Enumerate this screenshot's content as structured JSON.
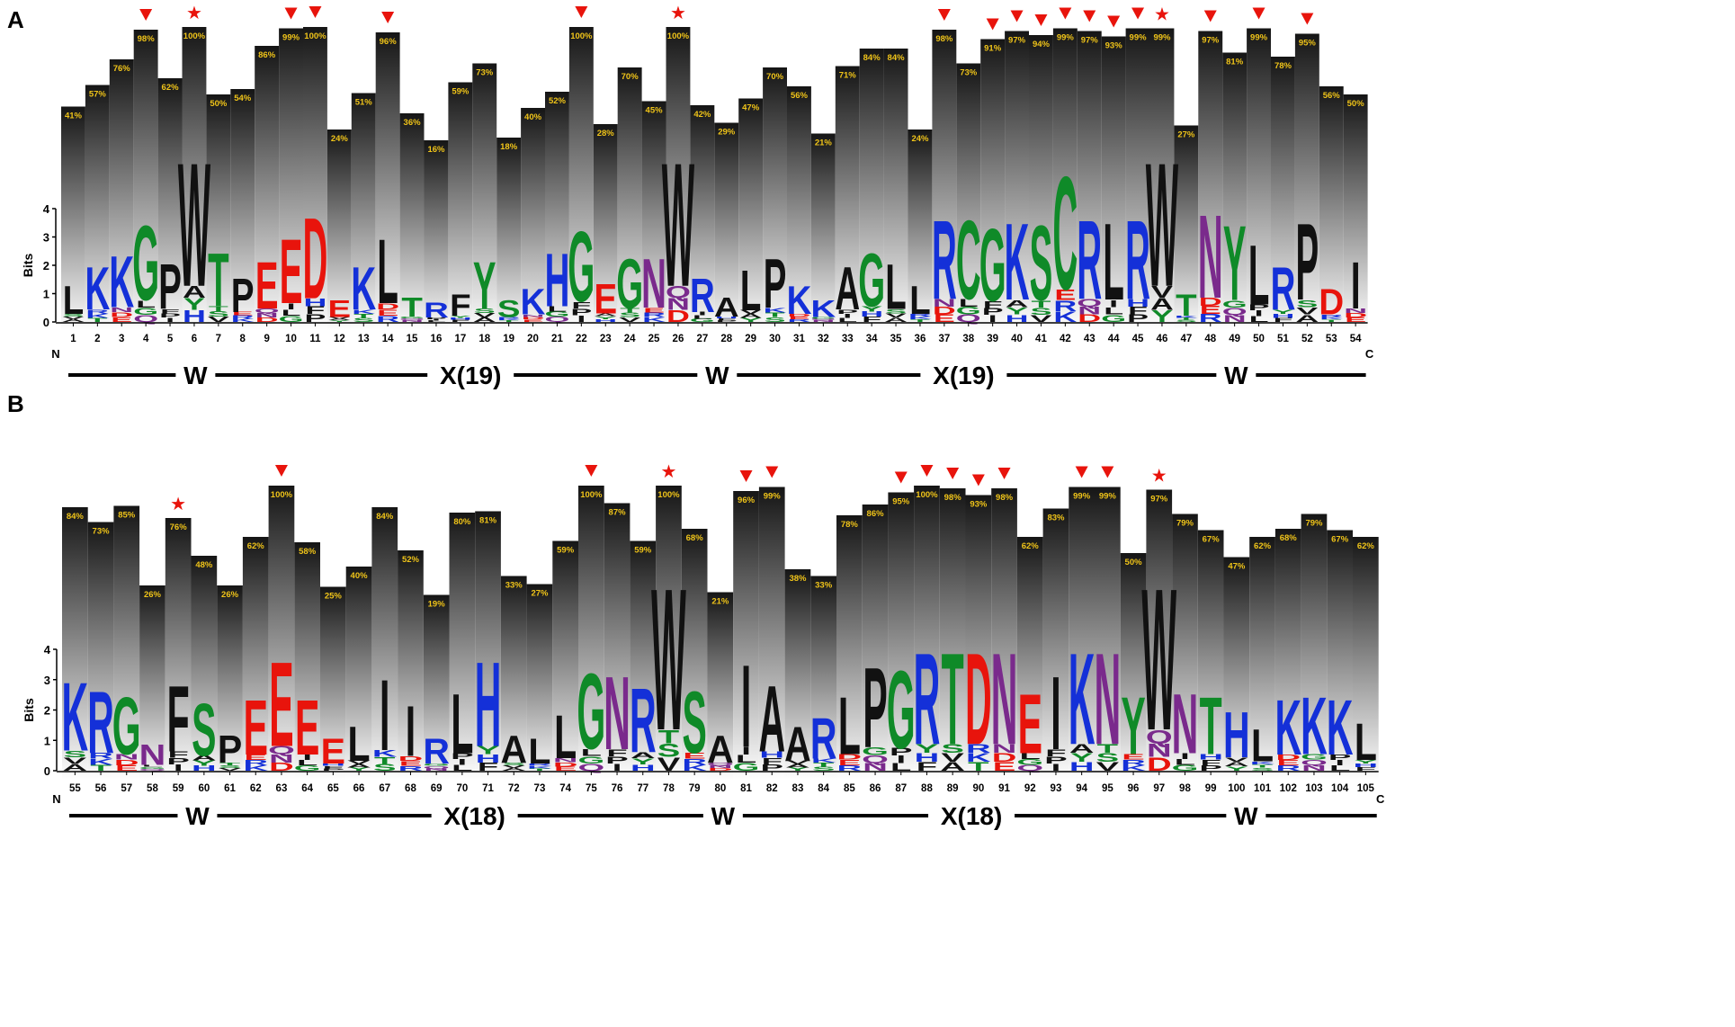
{
  "panels": [
    {
      "label": "A",
      "start_pos": 1,
      "conservation_pct": [
        41,
        57,
        76,
        98,
        62,
        100,
        50,
        54,
        86,
        99,
        100,
        24,
        51,
        96,
        36,
        16,
        59,
        73,
        18,
        40,
        52,
        100,
        28,
        70,
        45,
        100,
        42,
        29,
        47,
        70,
        56,
        21,
        71,
        84,
        84,
        24,
        98,
        73,
        91,
        97,
        94,
        99,
        97,
        93,
        99,
        99,
        27,
        97,
        81,
        99,
        78,
        95,
        56,
        50
      ],
      "markers": [
        {
          "pos": 4,
          "type": "triangle"
        },
        {
          "pos": 6,
          "type": "star"
        },
        {
          "pos": 10,
          "type": "triangle"
        },
        {
          "pos": 11,
          "type": "triangle"
        },
        {
          "pos": 14,
          "type": "triangle"
        },
        {
          "pos": 22,
          "type": "triangle"
        },
        {
          "pos": 26,
          "type": "star"
        },
        {
          "pos": 37,
          "type": "triangle"
        },
        {
          "pos": 39,
          "type": "triangle"
        },
        {
          "pos": 40,
          "type": "triangle"
        },
        {
          "pos": 41,
          "type": "triangle"
        },
        {
          "pos": 42,
          "type": "triangle"
        },
        {
          "pos": 43,
          "type": "triangle"
        },
        {
          "pos": 44,
          "type": "triangle"
        },
        {
          "pos": 45,
          "type": "triangle"
        },
        {
          "pos": 46,
          "type": "star"
        },
        {
          "pos": 48,
          "type": "triangle"
        },
        {
          "pos": 50,
          "type": "triangle"
        },
        {
          "pos": 52,
          "type": "triangle"
        }
      ],
      "logo_top": [
        "L",
        "K",
        "K",
        "G",
        "P",
        "W",
        "T",
        "P",
        "E",
        "E",
        "D",
        "E",
        "K",
        "L",
        "T",
        "R",
        "F",
        "Y",
        "S",
        "K",
        "H",
        "G",
        "E",
        "G",
        "N",
        "W",
        "R",
        "A",
        "L",
        "P",
        "K",
        "K",
        "A",
        "G",
        "L",
        "L",
        "R",
        "C",
        "G",
        "K",
        "S",
        "C",
        "R",
        "L",
        "R",
        "W",
        "T",
        "N",
        "Y",
        "L",
        "R",
        "P",
        "D",
        "I"
      ],
      "logo_bits": [
        1.3,
        2.0,
        2.4,
        3.5,
        2.1,
        5.8,
        2.5,
        1.6,
        2.2,
        3.0,
        3.8,
        0.8,
        2.0,
        3.0,
        0.9,
        0.7,
        1.0,
        2.2,
        0.8,
        1.2,
        2.5,
        3.3,
        1.4,
        2.3,
        2.3,
        5.8,
        1.6,
        0.9,
        1.9,
        2.3,
        1.3,
        0.8,
        2.0,
        2.5,
        2.1,
        1.3,
        3.7,
        3.7,
        3.4,
        3.6,
        3.5,
        5.3,
        3.7,
        3.6,
        3.7,
        5.8,
        1.0,
        3.9,
        3.5,
        2.8,
        2.0,
        3.6,
        1.2,
        2.2
      ],
      "domain_labels": [
        "W",
        "X(19)",
        "W",
        "X(19)",
        "W"
      ],
      "bits_label": "Bits",
      "y_ticks": [
        "0",
        "1",
        "2",
        "3",
        "4"
      ],
      "n_label": "N",
      "c_label": "C"
    },
    {
      "label": "B",
      "start_pos": 55,
      "conservation_pct": [
        84,
        73,
        85,
        26,
        76,
        48,
        26,
        62,
        100,
        58,
        25,
        40,
        84,
        52,
        19,
        80,
        81,
        33,
        27,
        59,
        100,
        87,
        59,
        100,
        68,
        21,
        96,
        99,
        38,
        33,
        78,
        86,
        95,
        100,
        98,
        93,
        98,
        62,
        83,
        99,
        99,
        50,
        97,
        79,
        67,
        47,
        62,
        68,
        79,
        67,
        62
      ],
      "markers": [
        {
          "pos": 59,
          "type": "star"
        },
        {
          "pos": 63,
          "type": "triangle"
        },
        {
          "pos": 75,
          "type": "triangle"
        },
        {
          "pos": 78,
          "type": "star"
        },
        {
          "pos": 81,
          "type": "triangle"
        },
        {
          "pos": 82,
          "type": "triangle"
        },
        {
          "pos": 87,
          "type": "triangle"
        },
        {
          "pos": 88,
          "type": "triangle"
        },
        {
          "pos": 89,
          "type": "triangle"
        },
        {
          "pos": 90,
          "type": "triangle"
        },
        {
          "pos": 91,
          "type": "triangle"
        },
        {
          "pos": 94,
          "type": "triangle"
        },
        {
          "pos": 95,
          "type": "triangle"
        },
        {
          "pos": 97,
          "type": "star"
        }
      ],
      "logo_top": [
        "K",
        "R",
        "G",
        "N",
        "F",
        "S",
        "P",
        "E",
        "E",
        "E",
        "E",
        "L",
        "I",
        "I",
        "R",
        "L",
        "H",
        "A",
        "L",
        "L",
        "G",
        "N",
        "R",
        "W",
        "S",
        "A",
        "I",
        "A",
        "A",
        "R",
        "L",
        "P",
        "G",
        "R",
        "T",
        "D",
        "N",
        "E",
        "I",
        "K",
        "N",
        "Y",
        "W",
        "N",
        "T",
        "H",
        "L",
        "K",
        "K",
        "K",
        "L"
      ],
      "logo_bits": [
        3.0,
        2.7,
        2.5,
        0.9,
        2.9,
        2.3,
        1.2,
        2.4,
        3.7,
        2.4,
        1.1,
        1.5,
        3.1,
        2.2,
        1.1,
        2.6,
        3.7,
        1.2,
        1.1,
        1.9,
        3.3,
        3.2,
        2.8,
        6.2,
        2.7,
        1.2,
        3.6,
        2.9,
        1.5,
        1.8,
        2.5,
        3.5,
        3.4,
        4.0,
        4.0,
        4.0,
        4.0,
        2.6,
        3.2,
        4.0,
        4.0,
        2.5,
        6.2,
        2.6,
        2.5,
        2.0,
        1.4,
        2.4,
        2.5,
        2.4,
        1.6
      ],
      "domain_labels": [
        "W",
        "X(18)",
        "W",
        "X(18)",
        "W"
      ],
      "bits_label": "Bits",
      "y_ticks": [
        "0",
        "1",
        "2",
        "3",
        "4"
      ],
      "n_label": "N",
      "c_label": "C"
    }
  ],
  "colors": {
    "red_marker": "#e8140c",
    "pct_text": "#f0c419",
    "polar_green": "#0f8a28",
    "basic_blue": "#1430d8",
    "acidic_red": "#e8140c",
    "amide_purple": "#7a2a8c",
    "hydrophobic_black": "#111111"
  }
}
